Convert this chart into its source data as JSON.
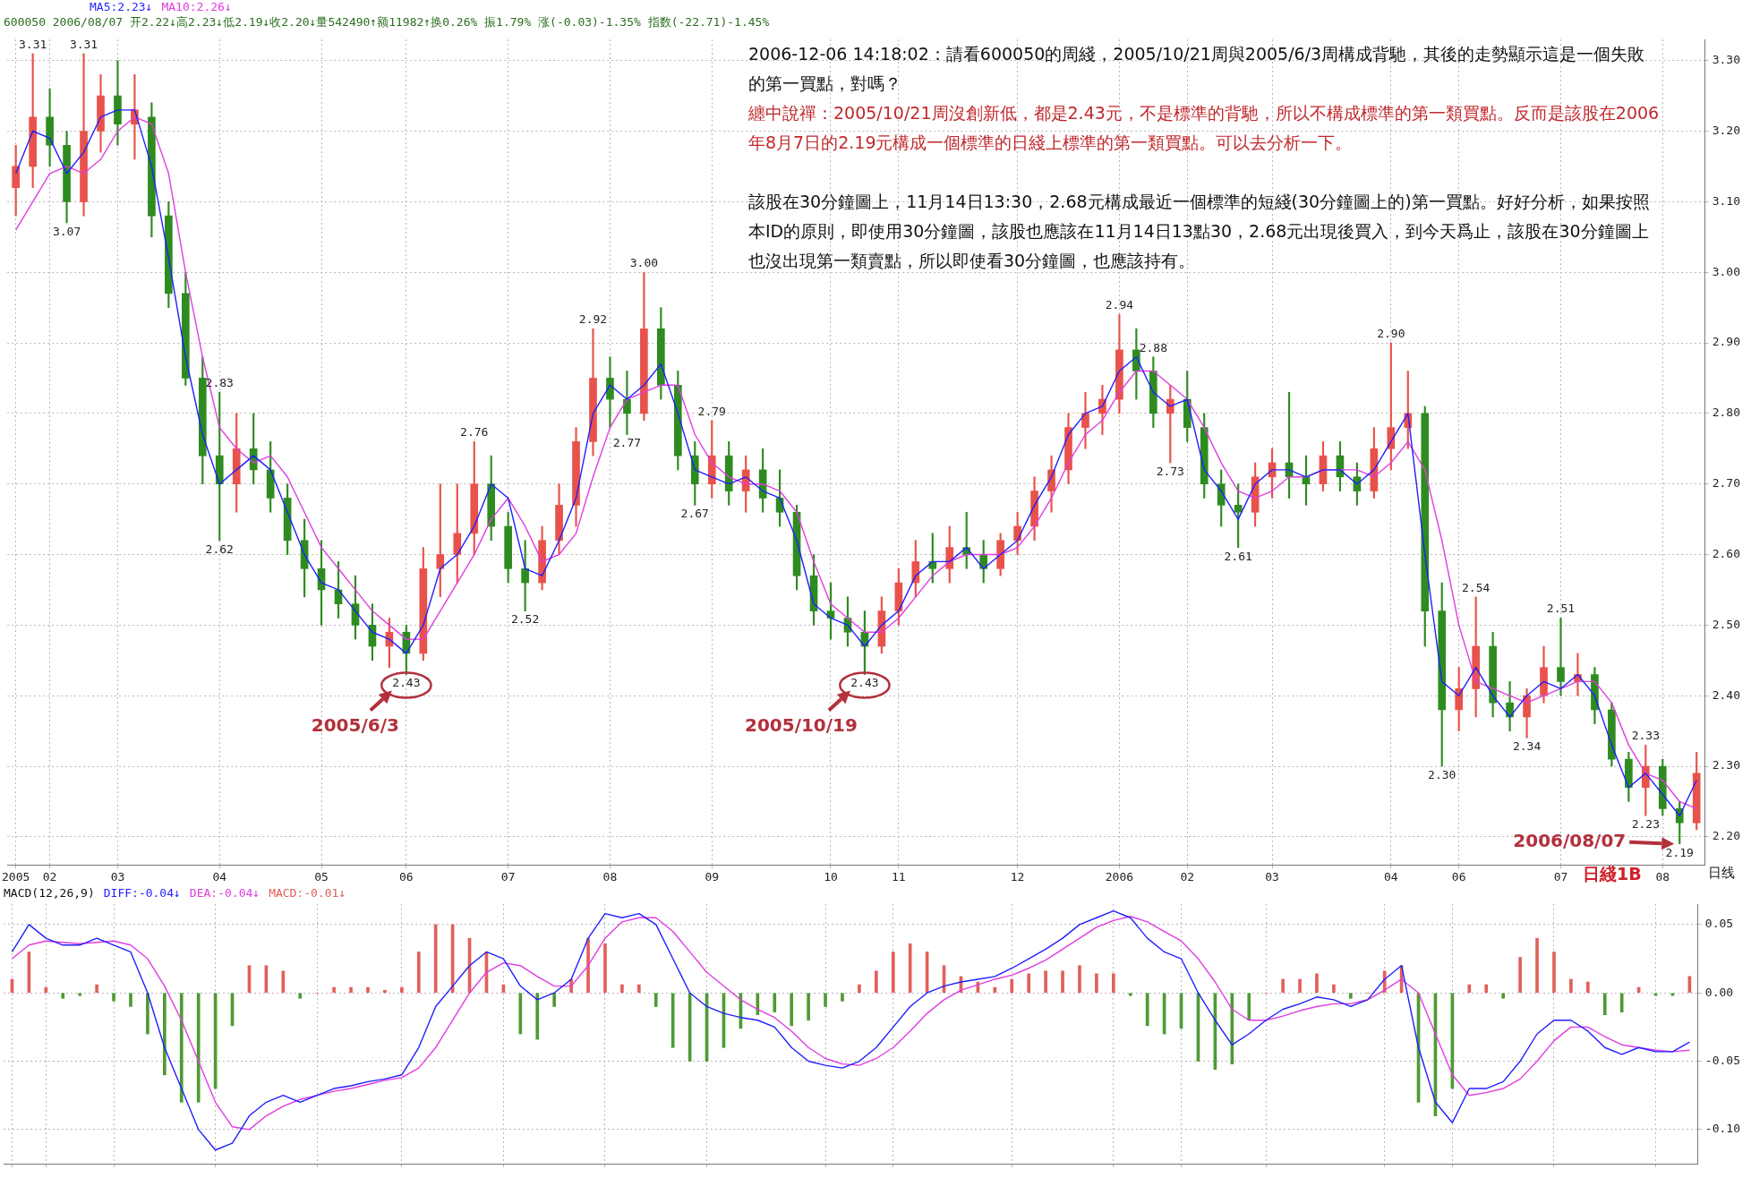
{
  "chart_data": [
    {
      "type": "candlestick",
      "categories": [
        "2005",
        null,
        "02",
        null,
        null,
        null,
        "03",
        null,
        null,
        null,
        null,
        null,
        "04",
        null,
        null,
        null,
        null,
        null,
        "05",
        null,
        null,
        null,
        null,
        "06",
        null,
        null,
        null,
        null,
        null,
        "07",
        null,
        null,
        null,
        null,
        null,
        "08",
        null,
        null,
        null,
        null,
        null,
        "09",
        null,
        null,
        null,
        null,
        null,
        null,
        "10",
        null,
        null,
        null,
        "11",
        null,
        null,
        null,
        null,
        null,
        null,
        "12",
        null,
        null,
        null,
        null,
        null,
        "2006",
        null,
        null,
        null,
        "02",
        null,
        null,
        null,
        null,
        "03",
        null,
        null,
        null,
        null,
        null,
        null,
        "04",
        null,
        null,
        null,
        "06",
        null,
        null,
        null,
        null,
        null,
        "07",
        null,
        null,
        null,
        null,
        null,
        "08",
        null,
        null
      ],
      "ohlc": [
        [
          3.12,
          3.18,
          3.08,
          3.15
        ],
        [
          3.15,
          3.31,
          3.12,
          3.22
        ],
        [
          3.22,
          3.26,
          3.15,
          3.18
        ],
        [
          3.18,
          3.2,
          3.07,
          3.1
        ],
        [
          3.1,
          3.31,
          3.08,
          3.2
        ],
        [
          3.2,
          3.28,
          3.17,
          3.25
        ],
        [
          3.25,
          3.3,
          3.18,
          3.21
        ],
        [
          3.21,
          3.28,
          3.16,
          3.23
        ],
        [
          3.22,
          3.24,
          3.05,
          3.08
        ],
        [
          3.08,
          3.1,
          2.95,
          2.97
        ],
        [
          2.97,
          3.0,
          2.84,
          2.85
        ],
        [
          2.85,
          2.88,
          2.7,
          2.74
        ],
        [
          2.74,
          2.83,
          2.62,
          2.7
        ],
        [
          2.7,
          2.8,
          2.66,
          2.75
        ],
        [
          2.75,
          2.8,
          2.7,
          2.72
        ],
        [
          2.72,
          2.76,
          2.66,
          2.68
        ],
        [
          2.68,
          2.7,
          2.6,
          2.62
        ],
        [
          2.62,
          2.65,
          2.54,
          2.58
        ],
        [
          2.58,
          2.62,
          2.5,
          2.55
        ],
        [
          2.55,
          2.59,
          2.51,
          2.53
        ],
        [
          2.53,
          2.57,
          2.48,
          2.5
        ],
        [
          2.5,
          2.53,
          2.45,
          2.47
        ],
        [
          2.47,
          2.51,
          2.44,
          2.49
        ],
        [
          2.49,
          2.5,
          2.43,
          2.46
        ],
        [
          2.46,
          2.61,
          2.45,
          2.58
        ],
        [
          2.58,
          2.7,
          2.54,
          2.6
        ],
        [
          2.6,
          2.7,
          2.56,
          2.63
        ],
        [
          2.63,
          2.76,
          2.6,
          2.7
        ],
        [
          2.7,
          2.74,
          2.62,
          2.64
        ],
        [
          2.64,
          2.66,
          2.56,
          2.58
        ],
        [
          2.58,
          2.62,
          2.52,
          2.56
        ],
        [
          2.56,
          2.64,
          2.55,
          2.62
        ],
        [
          2.62,
          2.7,
          2.6,
          2.67
        ],
        [
          2.67,
          2.78,
          2.64,
          2.76
        ],
        [
          2.76,
          2.92,
          2.74,
          2.85
        ],
        [
          2.85,
          2.88,
          2.78,
          2.82
        ],
        [
          2.82,
          2.86,
          2.77,
          2.8
        ],
        [
          2.8,
          3.0,
          2.79,
          2.92
        ],
        [
          2.92,
          2.95,
          2.82,
          2.84
        ],
        [
          2.84,
          2.86,
          2.72,
          2.74
        ],
        [
          2.74,
          2.76,
          2.67,
          2.7
        ],
        [
          2.7,
          2.79,
          2.68,
          2.74
        ],
        [
          2.74,
          2.76,
          2.67,
          2.69
        ],
        [
          2.69,
          2.74,
          2.66,
          2.72
        ],
        [
          2.72,
          2.75,
          2.66,
          2.68
        ],
        [
          2.68,
          2.72,
          2.64,
          2.66
        ],
        [
          2.66,
          2.67,
          2.55,
          2.57
        ],
        [
          2.57,
          2.6,
          2.5,
          2.52
        ],
        [
          2.52,
          2.56,
          2.48,
          2.51
        ],
        [
          2.51,
          2.54,
          2.47,
          2.49
        ],
        [
          2.49,
          2.52,
          2.43,
          2.47
        ],
        [
          2.47,
          2.54,
          2.46,
          2.52
        ],
        [
          2.52,
          2.58,
          2.5,
          2.56
        ],
        [
          2.56,
          2.62,
          2.54,
          2.59
        ],
        [
          2.59,
          2.63,
          2.56,
          2.58
        ],
        [
          2.58,
          2.64,
          2.56,
          2.61
        ],
        [
          2.61,
          2.66,
          2.58,
          2.6
        ],
        [
          2.6,
          2.62,
          2.56,
          2.58
        ],
        [
          2.58,
          2.63,
          2.57,
          2.62
        ],
        [
          2.62,
          2.66,
          2.6,
          2.64
        ],
        [
          2.64,
          2.71,
          2.62,
          2.69
        ],
        [
          2.69,
          2.74,
          2.66,
          2.72
        ],
        [
          2.72,
          2.8,
          2.7,
          2.78
        ],
        [
          2.78,
          2.83,
          2.75,
          2.8
        ],
        [
          2.8,
          2.84,
          2.77,
          2.82
        ],
        [
          2.82,
          2.94,
          2.8,
          2.89
        ],
        [
          2.89,
          2.92,
          2.82,
          2.86
        ],
        [
          2.86,
          2.88,
          2.78,
          2.8
        ],
        [
          2.8,
          2.84,
          2.73,
          2.82
        ],
        [
          2.82,
          2.86,
          2.76,
          2.78
        ],
        [
          2.78,
          2.8,
          2.68,
          2.7
        ],
        [
          2.7,
          2.72,
          2.64,
          2.67
        ],
        [
          2.67,
          2.7,
          2.61,
          2.66
        ],
        [
          2.66,
          2.73,
          2.64,
          2.71
        ],
        [
          2.71,
          2.75,
          2.68,
          2.73
        ],
        [
          2.73,
          2.83,
          2.68,
          2.71
        ],
        [
          2.71,
          2.74,
          2.67,
          2.7
        ],
        [
          2.7,
          2.76,
          2.69,
          2.74
        ],
        [
          2.74,
          2.76,
          2.69,
          2.71
        ],
        [
          2.71,
          2.73,
          2.67,
          2.69
        ],
        [
          2.69,
          2.78,
          2.68,
          2.75
        ],
        [
          2.75,
          2.9,
          2.72,
          2.78
        ],
        [
          2.78,
          2.86,
          2.75,
          2.8
        ],
        [
          2.8,
          2.81,
          2.47,
          2.52
        ],
        [
          2.52,
          2.56,
          2.3,
          2.38
        ],
        [
          2.38,
          2.44,
          2.35,
          2.41
        ],
        [
          2.41,
          2.54,
          2.37,
          2.47
        ],
        [
          2.47,
          2.49,
          2.37,
          2.39
        ],
        [
          2.39,
          2.42,
          2.35,
          2.37
        ],
        [
          2.37,
          2.41,
          2.34,
          2.4
        ],
        [
          2.4,
          2.47,
          2.39,
          2.44
        ],
        [
          2.44,
          2.51,
          2.4,
          2.42
        ],
        [
          2.42,
          2.46,
          2.4,
          2.43
        ],
        [
          2.43,
          2.44,
          2.36,
          2.38
        ],
        [
          2.38,
          2.39,
          2.3,
          2.31
        ],
        [
          2.31,
          2.32,
          2.25,
          2.27
        ],
        [
          2.27,
          2.33,
          2.23,
          2.3
        ],
        [
          2.3,
          2.31,
          2.23,
          2.24
        ],
        [
          2.24,
          2.25,
          2.19,
          2.22
        ],
        [
          2.22,
          2.32,
          2.21,
          2.29
        ]
      ],
      "series": [
        {
          "name": "MA5:2.23↓",
          "type": "line",
          "color": "#1f1fff",
          "values": [
            3.14,
            3.2,
            3.19,
            3.14,
            3.17,
            3.22,
            3.23,
            3.23,
            3.15,
            3.02,
            2.88,
            2.77,
            2.7,
            2.72,
            2.74,
            2.72,
            2.66,
            2.6,
            2.56,
            2.55,
            2.52,
            2.49,
            2.48,
            2.46,
            2.5,
            2.58,
            2.6,
            2.64,
            2.7,
            2.68,
            2.58,
            2.57,
            2.62,
            2.68,
            2.8,
            2.84,
            2.82,
            2.84,
            2.87,
            2.8,
            2.72,
            2.71,
            2.7,
            2.71,
            2.69,
            2.68,
            2.62,
            2.53,
            2.51,
            2.5,
            2.47,
            2.5,
            2.52,
            2.57,
            2.59,
            2.59,
            2.61,
            2.58,
            2.6,
            2.62,
            2.67,
            2.71,
            2.77,
            2.8,
            2.81,
            2.86,
            2.88,
            2.83,
            2.81,
            2.82,
            2.72,
            2.69,
            2.65,
            2.7,
            2.72,
            2.72,
            2.71,
            2.72,
            2.72,
            2.7,
            2.72,
            2.76,
            2.8,
            2.6,
            2.42,
            2.4,
            2.44,
            2.4,
            2.37,
            2.4,
            2.42,
            2.41,
            2.43,
            2.4,
            2.33,
            2.27,
            2.29,
            2.26,
            2.23,
            2.28
          ]
        },
        {
          "name": "MA10:2.26↓",
          "type": "line",
          "color": "#e03ce0",
          "values": [
            3.06,
            3.1,
            3.14,
            3.15,
            3.14,
            3.16,
            3.2,
            3.22,
            3.21,
            3.14,
            3.0,
            2.88,
            2.78,
            2.75,
            2.73,
            2.74,
            2.71,
            2.66,
            2.61,
            2.58,
            2.55,
            2.52,
            2.5,
            2.48,
            2.48,
            2.52,
            2.56,
            2.6,
            2.65,
            2.68,
            2.64,
            2.59,
            2.6,
            2.63,
            2.71,
            2.78,
            2.82,
            2.83,
            2.84,
            2.84,
            2.77,
            2.73,
            2.71,
            2.7,
            2.7,
            2.69,
            2.66,
            2.59,
            2.53,
            2.51,
            2.49,
            2.49,
            2.51,
            2.54,
            2.57,
            2.59,
            2.6,
            2.6,
            2.6,
            2.61,
            2.64,
            2.68,
            2.73,
            2.77,
            2.79,
            2.83,
            2.86,
            2.86,
            2.84,
            2.82,
            2.78,
            2.73,
            2.69,
            2.68,
            2.69,
            2.71,
            2.71,
            2.72,
            2.72,
            2.72,
            2.71,
            2.73,
            2.76,
            2.72,
            2.62,
            2.5,
            2.42,
            2.41,
            2.4,
            2.39,
            2.4,
            2.41,
            2.42,
            2.42,
            2.39,
            2.33,
            2.29,
            2.28,
            2.25,
            2.24
          ]
        }
      ],
      "ylim": [
        2.16,
        3.33
      ],
      "yticks": [
        {
          "value": 2.2,
          "label": "2.20"
        },
        {
          "value": 2.3,
          "label": "2.30"
        },
        {
          "value": 2.4,
          "label": "2.40"
        },
        {
          "value": 2.5,
          "label": "2.50"
        },
        {
          "value": 2.6,
          "label": "2.60"
        },
        {
          "value": 2.7,
          "label": "2.70"
        },
        {
          "value": 2.8,
          "label": "2.80"
        },
        {
          "value": 2.9,
          "label": "2.90"
        },
        {
          "value": 3.0,
          "label": "3.00"
        },
        {
          "value": 3.1,
          "label": "3.10"
        },
        {
          "value": 3.2,
          "label": "3.20"
        },
        {
          "value": 3.3,
          "label": "3.30"
        }
      ],
      "grid": true,
      "legend": "top left",
      "marker": "none",
      "annotations": [
        "600050 2006/08/07 开2.22↓高2.23↓低2.19↓收2.20↓量542490↑额11982↑换0.26% 振1.79% 涨(-0.03)-1.35% 指数(-22.71)-1.45%",
        "2006-12-06 14:18:02：請看600050的周綫，2005/10/21周與2005/6/3周構成背馳，其後的走勢顯示這是一個失敗的第一買點，對嗎？",
        "纏中說禪：2005/10/21周沒創新低，都是2.43元，不是標準的背馳，所以不構成標準的第一類買點。反而是該股在2006年8月7日的2.19元構成一個標準的日綫上標準的第一類買點。可以去分析一下。",
        "該股在30分鐘圖上，11月14日13:30，2.68元構成最近一個標準的短綫(30分鐘圖上的)第一買點。好好分析，如果按照本ID的原則，即使用30分鐘圖，該股也應該在11月14日13點30，2.68元出現後買入，到今天爲止，該股在30分鐘圖上也沒出現第一類賣點，所以即使看30分鐘圖，也應該持有。",
        "日綫1B",
        "日线",
        {
          "text": "3.31",
          "y": 3.31
        },
        {
          "text": "3.07",
          "y": 3.07
        },
        {
          "text": "3.31",
          "y": 3.31
        },
        {
          "text": "2.83",
          "y": 2.83
        },
        {
          "text": "2.62",
          "y": 2.62
        },
        {
          "text": "2.43",
          "y": 2.43
        },
        {
          "text": "2.76",
          "y": 2.76
        },
        {
          "text": "2.52",
          "y": 2.52
        },
        {
          "text": "2.92",
          "y": 2.92
        },
        {
          "text": "2.77",
          "y": 2.77
        },
        {
          "text": "3.00",
          "y": 3.0
        },
        {
          "text": "2.67",
          "y": 2.67
        },
        {
          "text": "2.79",
          "y": 2.79
        },
        {
          "text": "2.43",
          "y": 2.43
        },
        {
          "text": "2.94",
          "y": 2.94
        },
        {
          "text": "2.88",
          "y": 2.88
        },
        {
          "text": "2.73",
          "y": 2.73
        },
        {
          "text": "2.61",
          "y": 2.61
        },
        {
          "text": "2.90",
          "y": 2.9
        },
        {
          "text": "2.30",
          "y": 2.3
        },
        {
          "text": "2.54",
          "y": 2.54
        },
        {
          "text": "2.34",
          "y": 2.34
        },
        {
          "text": "2.51",
          "y": 2.51
        },
        {
          "text": "2.33",
          "y": 2.33
        },
        {
          "text": "2.23",
          "y": 2.23
        },
        {
          "text": "2.19",
          "y": 2.19
        },
        "2005/6/3",
        "2005/10/19",
        "2006/08/07"
      ]
    },
    {
      "type": "bar",
      "title": "MACD(12,26,9)",
      "categories": [
        "2005",
        null,
        "02",
        null,
        null,
        null,
        "03",
        null,
        null,
        null,
        null,
        null,
        "04",
        null,
        null,
        null,
        null,
        null,
        "05",
        null,
        null,
        null,
        null,
        "06",
        null,
        null,
        null,
        null,
        null,
        "07",
        null,
        null,
        null,
        null,
        null,
        "08",
        null,
        null,
        null,
        null,
        null,
        "09",
        null,
        null,
        null,
        null,
        null,
        null,
        "10",
        null,
        null,
        null,
        "11",
        null,
        null,
        null,
        null,
        null,
        null,
        "12",
        null,
        null,
        null,
        null,
        null,
        "2006",
        null,
        null,
        null,
        "02",
        null,
        null,
        null,
        null,
        "03",
        null,
        null,
        null,
        null,
        null,
        null,
        "04",
        null,
        null,
        null,
        "06",
        null,
        null,
        null,
        null,
        null,
        "07",
        null,
        null,
        null,
        null,
        null,
        "08",
        null,
        null
      ],
      "series": [
        {
          "name": "DIFF:-0.04↓",
          "type": "line",
          "color": "#1f1fff",
          "values": [
            0.03,
            0.05,
            0.04,
            0.035,
            0.035,
            0.04,
            0.035,
            0.03,
            0.0,
            -0.04,
            -0.07,
            -0.1,
            -0.115,
            -0.11,
            -0.09,
            -0.08,
            -0.075,
            -0.08,
            -0.075,
            -0.07,
            -0.068,
            -0.065,
            -0.063,
            -0.06,
            -0.04,
            -0.01,
            0.005,
            0.02,
            0.03,
            0.025,
            0.005,
            -0.005,
            0.0,
            0.01,
            0.04,
            0.058,
            0.055,
            0.058,
            0.05,
            0.025,
            0.0,
            -0.01,
            -0.015,
            -0.018,
            -0.02,
            -0.025,
            -0.04,
            -0.05,
            -0.053,
            -0.055,
            -0.05,
            -0.04,
            -0.025,
            -0.01,
            0.0,
            0.005,
            0.008,
            0.01,
            0.012,
            0.018,
            0.025,
            0.032,
            0.04,
            0.05,
            0.055,
            0.06,
            0.055,
            0.04,
            0.03,
            0.025,
            0.0,
            -0.02,
            -0.038,
            -0.03,
            -0.02,
            -0.012,
            -0.008,
            -0.003,
            -0.005,
            -0.01,
            -0.005,
            0.01,
            0.02,
            -0.04,
            -0.08,
            -0.095,
            -0.07,
            -0.07,
            -0.065,
            -0.05,
            -0.03,
            -0.02,
            -0.02,
            -0.028,
            -0.04,
            -0.045,
            -0.04,
            -0.043,
            -0.043,
            -0.036
          ]
        },
        {
          "name": "DEA:-0.04↓",
          "type": "line",
          "color": "#e03ce0",
          "values": [
            0.025,
            0.035,
            0.038,
            0.037,
            0.036,
            0.037,
            0.038,
            0.035,
            0.025,
            0.005,
            -0.02,
            -0.05,
            -0.08,
            -0.098,
            -0.1,
            -0.09,
            -0.083,
            -0.078,
            -0.075,
            -0.072,
            -0.07,
            -0.067,
            -0.064,
            -0.062,
            -0.055,
            -0.04,
            -0.02,
            0.0,
            0.015,
            0.022,
            0.02,
            0.012,
            0.005,
            0.005,
            0.02,
            0.04,
            0.052,
            0.055,
            0.055,
            0.045,
            0.03,
            0.015,
            0.005,
            -0.005,
            -0.012,
            -0.018,
            -0.028,
            -0.04,
            -0.048,
            -0.052,
            -0.053,
            -0.048,
            -0.04,
            -0.028,
            -0.015,
            -0.005,
            0.002,
            0.006,
            0.01,
            0.013,
            0.018,
            0.024,
            0.032,
            0.04,
            0.048,
            0.053,
            0.056,
            0.052,
            0.045,
            0.038,
            0.025,
            0.008,
            -0.012,
            -0.02,
            -0.02,
            -0.017,
            -0.013,
            -0.01,
            -0.008,
            -0.008,
            -0.005,
            0.002,
            0.01,
            0.0,
            -0.03,
            -0.06,
            -0.075,
            -0.073,
            -0.07,
            -0.063,
            -0.05,
            -0.035,
            -0.025,
            -0.025,
            -0.032,
            -0.038,
            -0.04,
            -0.042,
            -0.043,
            -0.042
          ]
        },
        {
          "name": "MACD:-0.01↓",
          "type": "bar",
          "color": "#e0605a",
          "values": [
            0.01,
            0.03,
            0.004,
            null,
            null,
            0.006,
            null,
            null,
            null,
            null,
            null,
            null,
            null,
            null,
            0.02,
            0.02,
            0.016,
            null,
            0.0,
            0.004,
            0.004,
            0.004,
            0.002,
            0.004,
            0.03,
            0.05,
            0.05,
            0.04,
            0.03,
            0.006,
            null,
            null,
            null,
            0.01,
            0.04,
            0.036,
            0.006,
            0.006,
            null,
            null,
            null,
            null,
            null,
            null,
            null,
            null,
            null,
            null,
            null,
            null,
            0.006,
            0.016,
            0.03,
            0.036,
            0.03,
            0.02,
            0.012,
            0.008,
            0.004,
            0.01,
            0.014,
            0.016,
            0.016,
            0.02,
            0.014,
            0.014,
            null,
            null,
            null,
            null,
            null,
            null,
            null,
            null,
            0.0,
            0.01,
            0.01,
            0.014,
            0.006,
            null,
            0.0,
            0.016,
            0.02,
            null,
            null,
            null,
            0.006,
            0.006,
            null,
            0.026,
            0.04,
            0.03,
            0.01,
            0.008,
            null,
            null,
            0.004,
            null,
            null,
            0.012
          ]
        },
        {
          "type": "bar",
          "color": "#4f9a34",
          "values": [
            null,
            null,
            null,
            -0.004,
            -0.002,
            null,
            -0.006,
            -0.01,
            -0.03,
            -0.06,
            -0.08,
            -0.08,
            -0.07,
            -0.024,
            null,
            null,
            null,
            -0.004,
            null,
            null,
            null,
            null,
            null,
            null,
            null,
            null,
            null,
            null,
            null,
            null,
            -0.03,
            -0.034,
            -0.01,
            null,
            null,
            null,
            null,
            null,
            -0.01,
            -0.04,
            -0.05,
            -0.05,
            -0.04,
            -0.026,
            -0.016,
            -0.014,
            -0.024,
            -0.02,
            -0.01,
            -0.006,
            null,
            null,
            null,
            null,
            null,
            null,
            null,
            null,
            null,
            null,
            null,
            null,
            null,
            null,
            null,
            null,
            -0.002,
            -0.024,
            -0.03,
            -0.026,
            -0.05,
            -0.056,
            -0.052,
            -0.02,
            null,
            null,
            null,
            null,
            null,
            -0.004,
            null,
            null,
            null,
            -0.08,
            -0.09,
            -0.07,
            null,
            null,
            -0.004,
            null,
            null,
            null,
            null,
            null,
            -0.016,
            -0.014,
            null,
            -0.002,
            -0.002,
            null
          ]
        }
      ],
      "ylim": [
        -0.125,
        0.065
      ],
      "yticks": [
        {
          "value": -0.1,
          "label": "-0.10"
        },
        {
          "value": -0.05,
          "label": "-0.05"
        },
        {
          "value": 0,
          "label": "0.00"
        },
        {
          "value": 0.05,
          "label": "0.05"
        }
      ],
      "grid": true,
      "legend": "top left",
      "marker": "none",
      "tick_labels": "y"
    }
  ]
}
